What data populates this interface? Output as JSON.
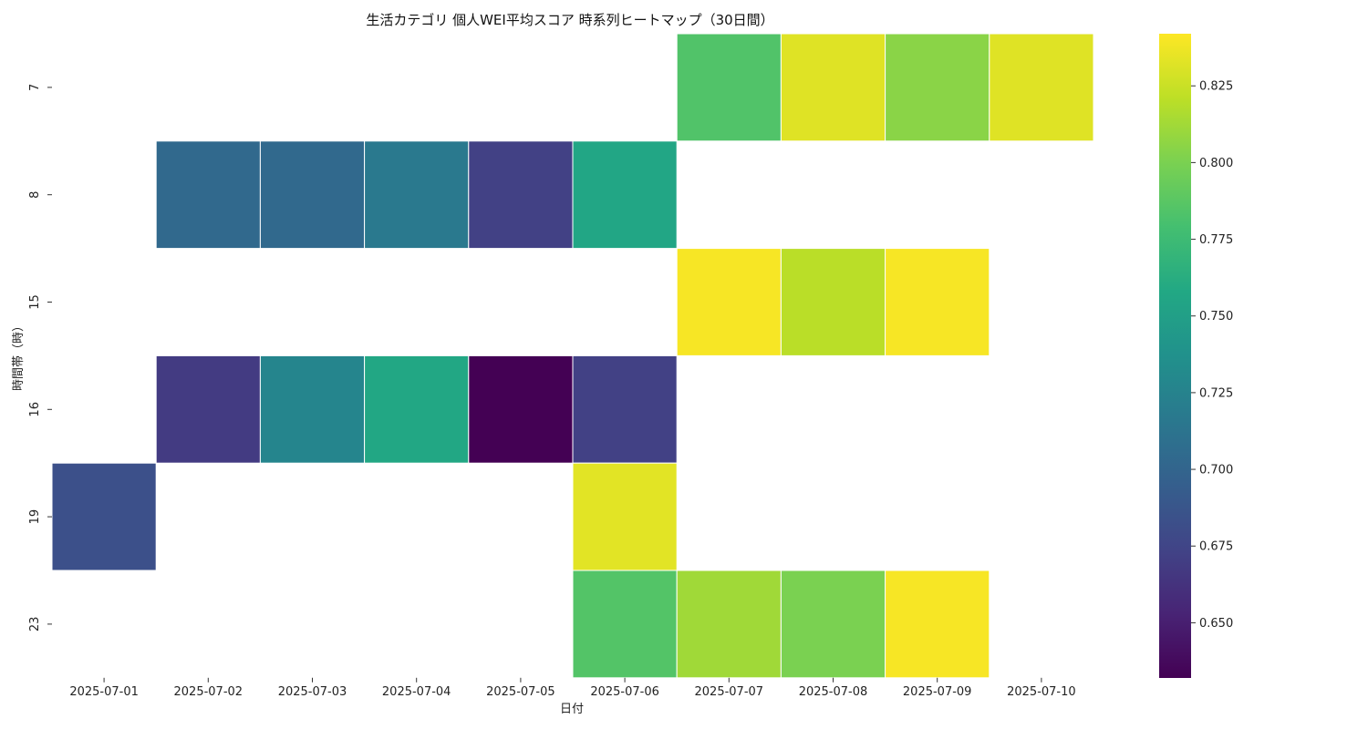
{
  "chart_data": {
    "type": "heatmap",
    "title": "生活カテゴリ 個人WEI平均スコア 時系列ヒートマップ（30日間）",
    "xlabel": "日付",
    "ylabel": "時間帯（時）",
    "x_categories": [
      "2025-07-01",
      "2025-07-02",
      "2025-07-03",
      "2025-07-04",
      "2025-07-05",
      "2025-07-06",
      "2025-07-07",
      "2025-07-08",
      "2025-07-09",
      "2025-07-10"
    ],
    "y_categories": [
      "7",
      "8",
      "15",
      "16",
      "19",
      "23"
    ],
    "values": [
      [
        null,
        null,
        null,
        null,
        null,
        null,
        0.784,
        0.832,
        0.805,
        0.832
      ],
      [
        null,
        0.703,
        0.703,
        0.717,
        0.672,
        0.756,
        null,
        null,
        null,
        null
      ],
      [
        null,
        null,
        null,
        null,
        null,
        null,
        0.84,
        0.82,
        0.84,
        null
      ],
      [
        null,
        0.668,
        0.727,
        0.757,
        0.632,
        0.672,
        null,
        null,
        null,
        null
      ],
      [
        0.683,
        null,
        null,
        null,
        null,
        0.833,
        null,
        null,
        null,
        null
      ],
      [
        null,
        null,
        null,
        null,
        null,
        0.785,
        0.812,
        0.8,
        0.84,
        null
      ]
    ],
    "colormap": "viridis",
    "vmin": 0.632,
    "vmax": 0.842,
    "colorbar_ticks": [
      0.65,
      0.675,
      0.7,
      0.725,
      0.75,
      0.775,
      0.8,
      0.825
    ],
    "colorbar_tick_labels": [
      "0.650",
      "0.675",
      "0.700",
      "0.725",
      "0.750",
      "0.775",
      "0.800",
      "0.825"
    ],
    "grid": false,
    "legend": "colorbar-right"
  }
}
